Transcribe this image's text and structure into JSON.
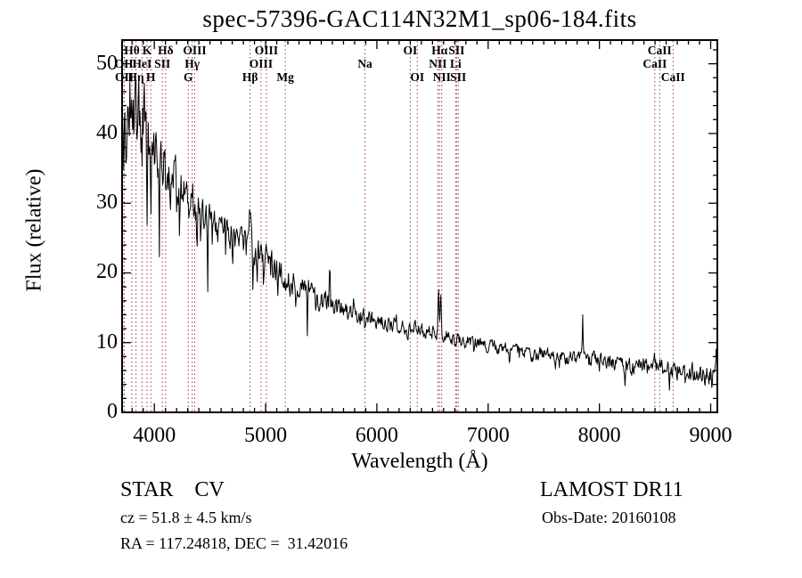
{
  "title": "spec-57396-GAC114N32M1_sp06-184.fits",
  "annotations": {
    "class_label": "STAR    CV",
    "survey": "LAMOST DR11",
    "cz": "cz = 51.8 ± 4.5 km/s",
    "obs_date": "Obs-Date: 20160108",
    "coords": "RA = 117.24818, DEC =  31.42016"
  },
  "chart_data": {
    "type": "line",
    "title": "spec-57396-GAC114N32M1_sp06-184.fits",
    "xlabel": "Wavelength (Å)",
    "ylabel": "Flux (relative)",
    "xlim": [
      3710,
      9060
    ],
    "ylim": [
      0,
      53.4
    ],
    "x_ticks": [
      4000,
      5000,
      6000,
      7000,
      8000,
      9000
    ],
    "x_minor_step": 100,
    "y_ticks": [
      0,
      10,
      20,
      30,
      40,
      50
    ],
    "y_minor_step": 2,
    "grid": false,
    "legend": null,
    "line_color": "#000000",
    "marker_line_color": "#a03434",
    "frame_color": "#000000",
    "spectral_lines": [
      {
        "label": "Hθ",
        "wl": 3798,
        "row": 1
      },
      {
        "label": "K",
        "wl": 3934,
        "row": 1
      },
      {
        "label": "Hδ",
        "wl": 4102,
        "row": 1
      },
      {
        "label": "OIII",
        "wl": 4363,
        "row": 1
      },
      {
        "label": "OIII",
        "wl": 5007,
        "row": 1
      },
      {
        "label": "OI",
        "wl": 6300,
        "row": 1
      },
      {
        "label": "Hα",
        "wl": 6563,
        "row": 1
      },
      {
        "label": "SII",
        "wl": 6716,
        "row": 1
      },
      {
        "label": "CaII",
        "wl": 8542,
        "row": 1
      },
      {
        "label": "OII",
        "wl": 3727,
        "row": 2
      },
      {
        "label": "HeI",
        "wl": 3889,
        "row": 2
      },
      {
        "label": "SII",
        "wl": 4072,
        "row": 2
      },
      {
        "label": "Hγ",
        "wl": 4340,
        "row": 2
      },
      {
        "label": "OIII",
        "wl": 4959,
        "row": 2
      },
      {
        "label": "Na",
        "wl": 5893,
        "row": 2
      },
      {
        "label": "NII",
        "wl": 6548,
        "row": 2
      },
      {
        "label": "Li",
        "wl": 6708,
        "row": 2
      },
      {
        "label": "CaII",
        "wl": 8498,
        "row": 2
      },
      {
        "label": "OII",
        "wl": 3730,
        "row": 3
      },
      {
        "label": "Hη",
        "wl": 3835,
        "row": 3
      },
      {
        "label": "H",
        "wl": 3968,
        "row": 3
      },
      {
        "label": "G",
        "wl": 4305,
        "row": 3
      },
      {
        "label": "Hβ",
        "wl": 4861,
        "row": 3
      },
      {
        "label": "Mg",
        "wl": 5177,
        "row": 3
      },
      {
        "label": "OI",
        "wl": 6363,
        "row": 3
      },
      {
        "label": "NII",
        "wl": 6583,
        "row": 3
      },
      {
        "label": "SII",
        "wl": 6731,
        "row": 3
      },
      {
        "label": "CaII",
        "wl": 8662,
        "row": 3
      }
    ],
    "continuum": [
      [
        3710,
        38
      ],
      [
        3720,
        41
      ],
      [
        3740,
        44
      ],
      [
        3760,
        45
      ],
      [
        3780,
        44.5
      ],
      [
        3800,
        44
      ],
      [
        3830,
        43.5
      ],
      [
        3860,
        43
      ],
      [
        3900,
        42
      ],
      [
        3940,
        40
      ],
      [
        3970,
        38.5
      ],
      [
        4000,
        38
      ],
      [
        4050,
        36.5
      ],
      [
        4100,
        35.5
      ],
      [
        4150,
        34.5
      ],
      [
        4200,
        33.5
      ],
      [
        4250,
        32
      ],
      [
        4300,
        31
      ],
      [
        4350,
        30
      ],
      [
        4400,
        29.2
      ],
      [
        4450,
        28.5
      ],
      [
        4500,
        27.8
      ],
      [
        4550,
        27.2
      ],
      [
        4600,
        26.6
      ],
      [
        4650,
        26
      ],
      [
        4700,
        25.5
      ],
      [
        4750,
        25
      ],
      [
        4800,
        24.5
      ],
      [
        4861,
        24
      ],
      [
        4900,
        23.2
      ],
      [
        4950,
        22.5
      ],
      [
        5000,
        21.8
      ],
      [
        5050,
        21
      ],
      [
        5100,
        20.3
      ],
      [
        5175,
        19.3
      ],
      [
        5250,
        18.3
      ],
      [
        5300,
        17.8
      ],
      [
        5400,
        16.9
      ],
      [
        5500,
        16.1
      ],
      [
        5600,
        15.4
      ],
      [
        5700,
        14.8
      ],
      [
        5800,
        14.2
      ],
      [
        5900,
        13.7
      ],
      [
        6000,
        13.1
      ],
      [
        6100,
        12.7
      ],
      [
        6200,
        12.4
      ],
      [
        6300,
        12.1
      ],
      [
        6400,
        11.7
      ],
      [
        6500,
        11.4
      ],
      [
        6563,
        11.2
      ],
      [
        6650,
        10.6
      ],
      [
        6750,
        10.3
      ],
      [
        6850,
        10
      ],
      [
        6950,
        9.7
      ],
      [
        7050,
        9.4
      ],
      [
        7150,
        9.1
      ],
      [
        7250,
        8.9
      ],
      [
        7350,
        8.6
      ],
      [
        7450,
        8.4
      ],
      [
        7550,
        8.2
      ],
      [
        7650,
        7.9
      ],
      [
        7750,
        7.7
      ],
      [
        7850,
        7.6
      ],
      [
        7950,
        7.4
      ],
      [
        8050,
        7.1
      ],
      [
        8150,
        6.9
      ],
      [
        8250,
        6.7
      ],
      [
        8350,
        6.6
      ],
      [
        8450,
        6.6
      ],
      [
        8550,
        6.3
      ],
      [
        8650,
        6.1
      ],
      [
        8750,
        5.9
      ],
      [
        8850,
        5.8
      ],
      [
        8950,
        5.5
      ],
      [
        9060,
        5.2
      ]
    ],
    "features": [
      [
        4341,
        3.5,
        7
      ],
      [
        4861,
        4.2,
        7
      ],
      [
        5577,
        6,
        4
      ],
      [
        5790,
        1.3,
        12
      ],
      [
        6176,
        2,
        3
      ],
      [
        6554,
        6.8,
        5
      ],
      [
        6574,
        6.2,
        5
      ],
      [
        7850,
        6,
        4
      ],
      [
        8500,
        0.9,
        8
      ],
      [
        8910,
        1.7,
        5
      ],
      [
        9050,
        2.6,
        6
      ],
      [
        3725,
        -4,
        3
      ],
      [
        3745,
        -3,
        2.5
      ],
      [
        3772,
        -5,
        3
      ],
      [
        3800,
        -4,
        3
      ],
      [
        3822,
        -6,
        3
      ],
      [
        3848,
        -5,
        3
      ],
      [
        3890,
        -8,
        3
      ],
      [
        3933,
        -13,
        3.5
      ],
      [
        3968,
        -13,
        3.5
      ],
      [
        4000,
        -4,
        3
      ],
      [
        4045,
        -13,
        3
      ],
      [
        4078,
        -5,
        3
      ],
      [
        4102,
        -5,
        3
      ],
      [
        4144,
        -5,
        3
      ],
      [
        4200,
        -4,
        3
      ],
      [
        4226,
        -7,
        3
      ],
      [
        4260,
        -4,
        3
      ],
      [
        4310,
        -4,
        3
      ],
      [
        4383,
        -6,
        3
      ],
      [
        4415,
        -4,
        3
      ],
      [
        4480,
        -9,
        3
      ],
      [
        4520,
        -4,
        3
      ],
      [
        4570,
        -3,
        3
      ],
      [
        4640,
        -3,
        3
      ],
      [
        4703,
        -3,
        3
      ],
      [
        4760,
        -3,
        3
      ],
      [
        4825,
        -3,
        3
      ],
      [
        4885,
        -7,
        3
      ],
      [
        4925,
        -4,
        3
      ],
      [
        4980,
        -3,
        3
      ],
      [
        5045,
        -3,
        3
      ],
      [
        5110,
        -2.5,
        3
      ],
      [
        5180,
        -2.5,
        3
      ],
      [
        5270,
        -2,
        3
      ],
      [
        5376,
        -7.5,
        3
      ],
      [
        5450,
        -2,
        3
      ],
      [
        5893,
        -1.6,
        4
      ],
      [
        6120,
        -1.2,
        3
      ],
      [
        6276,
        -1.5,
        4
      ],
      [
        6370,
        -1,
        3
      ],
      [
        6495,
        -1.3,
        3
      ],
      [
        6615,
        -1,
        3
      ],
      [
        6700,
        -0.8,
        3
      ],
      [
        6870,
        -1.6,
        5
      ],
      [
        7000,
        -1,
        3
      ],
      [
        7190,
        -1.4,
        4
      ],
      [
        7280,
        -1,
        3
      ],
      [
        7430,
        -1.2,
        3
      ],
      [
        7605,
        -2.3,
        5
      ],
      [
        7640,
        -1.6,
        4
      ],
      [
        7720,
        -1,
        3
      ],
      [
        8000,
        -1,
        3
      ],
      [
        8230,
        -3.2,
        3
      ],
      [
        8350,
        -1,
        3
      ],
      [
        8430,
        -1,
        3
      ],
      [
        8630,
        -2.3,
        3
      ],
      [
        8700,
        -1.2,
        3
      ],
      [
        8770,
        -1.4,
        3
      ],
      [
        8870,
        -1,
        3
      ],
      [
        8960,
        -1.6,
        3
      ],
      [
        9010,
        -1.2,
        3
      ]
    ],
    "noise_profile": [
      [
        3710,
        3.2
      ],
      [
        3800,
        3.2
      ],
      [
        3900,
        2.7
      ],
      [
        4000,
        2.2
      ],
      [
        4100,
        1.8
      ],
      [
        4300,
        1.4
      ],
      [
        4500,
        1.1
      ],
      [
        4800,
        1.0
      ],
      [
        5200,
        0.9
      ],
      [
        5600,
        0.75
      ],
      [
        6000,
        0.55
      ],
      [
        6400,
        0.5
      ],
      [
        6563,
        0.45
      ],
      [
        7000,
        0.45
      ],
      [
        7400,
        0.5
      ],
      [
        7800,
        0.5
      ],
      [
        8200,
        0.55
      ],
      [
        8600,
        0.6
      ],
      [
        9060,
        0.8
      ]
    ],
    "noise_seed": 20160108,
    "sample_step": 5
  }
}
